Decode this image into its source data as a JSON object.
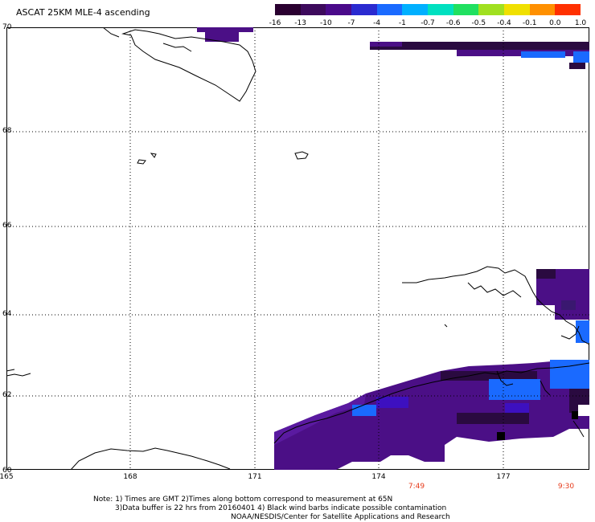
{
  "title": "ASCAT 25KM MLE-4 ascending",
  "colorbar": {
    "labels": [
      "-16",
      "-13",
      "-10",
      "-7",
      "-4",
      "-1",
      "-0.7",
      "-0.6",
      "-0.5",
      "-0.4",
      "-0.1",
      "0.0",
      "1.0"
    ],
    "colors": [
      "#2a0030",
      "#3d0a5c",
      "#4a0a8a",
      "#2a2ad0",
      "#1a6aff",
      "#00b0ff",
      "#00e0c0",
      "#20e060",
      "#a0e020",
      "#f0e000",
      "#ff9000",
      "#ff3000"
    ]
  },
  "latitude_labels": [
    "70",
    "68",
    "66",
    "64",
    "62",
    "60"
  ],
  "longitude_labels": [
    "165",
    "168",
    "171",
    "174",
    "177"
  ],
  "time_labels": [
    "7:49",
    "9:30"
  ],
  "notes": [
    "Note: 1) Times are GMT 2)Times along bottom correspond to measurement at 65N",
    "3)Data buffer is 22 hrs from 20160401 4) Black wind barbs indicate possible contamination",
    "NOAA/NESDIS/Center for Satellite Applications and Research"
  ],
  "colors": {
    "swath_dark": "#2a0a40",
    "swath_purple": "#4b0f86",
    "swath_blue": "#1a6aff",
    "time_text": "#e63a1a"
  }
}
